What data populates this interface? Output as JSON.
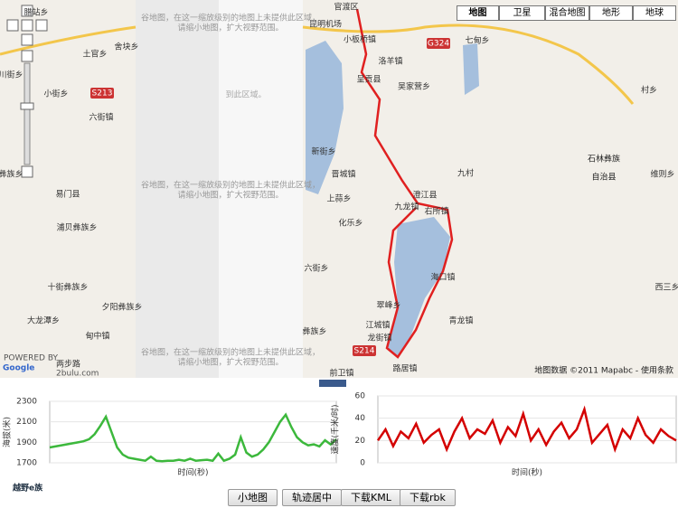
{
  "map": {
    "type_buttons": [
      "地图",
      "卫星",
      "混合地图",
      "地形",
      "地球"
    ],
    "labels": [
      "腊站乡",
      "土官乡",
      "舍块乡",
      "小街乡",
      "六街镇",
      "易门县",
      "浦贝彝族乡",
      "十街彝族乡",
      "大龙潭乡",
      "夕阳彝族乡",
      "甸中镇",
      "川街乡",
      "彝族乡",
      "官渡区",
      "昆明机场",
      "小板桥镇",
      "呈贡县",
      "洛羊镇",
      "吴家营乡",
      "七甸乡",
      "新街乡",
      "晋城镇",
      "上蒜乡",
      "化乐乡",
      "澄江县",
      "九龙镇",
      "右所镇",
      "九村",
      "海口镇",
      "六街乡",
      "翠峰乡",
      "江城镇",
      "龙街镇",
      "青龙镇",
      "彝族乡",
      "前卫镇",
      "路居镇",
      "村乡",
      "维则乡",
      "西三乡"
    ],
    "big_label": [
      "石林彝族",
      "自治县"
    ],
    "grey_label": "到此区域。",
    "roads": [
      "S213",
      "G324",
      "S214"
    ],
    "notice": [
      "谷地图，在这一缩放级别的地图上未提供此区域，",
      "请缩小地图，扩大视野范围。"
    ],
    "attribution": "地图数据 ©2011 Mapabc - 使用条款",
    "powered": "POWERED BY",
    "google": "Google",
    "brand": "两步路",
    "brand_url": "2bulu.com"
  },
  "chart_data": [
    {
      "type": "line",
      "y_label": "海拔(米)",
      "x_label": "时间(秒)",
      "ylim": [
        1700,
        2300
      ],
      "yticks": [
        1700,
        1900,
        2100,
        2300
      ],
      "color": "#3cb83c",
      "values": [
        1850,
        1860,
        1870,
        1880,
        1890,
        1900,
        1910,
        1930,
        1980,
        2060,
        2150,
        2000,
        1850,
        1780,
        1750,
        1740,
        1730,
        1720,
        1760,
        1720,
        1715,
        1720,
        1720,
        1730,
        1720,
        1740,
        1720,
        1725,
        1730,
        1720,
        1790,
        1720,
        1740,
        1780,
        1950,
        1800,
        1760,
        1780,
        1830,
        1900,
        2000,
        2100,
        2170,
        2050,
        1950,
        1900,
        1870,
        1880,
        1860,
        1920,
        1880,
        1930
      ]
    },
    {
      "type": "line",
      "y_label": "速度(千米/时)",
      "x_label": "时间(秒)",
      "ylim": [
        0,
        60
      ],
      "yticks": [
        0,
        20,
        40,
        60
      ],
      "color": "#d40000",
      "values": [
        20,
        30,
        15,
        28,
        22,
        35,
        18,
        25,
        30,
        12,
        28,
        40,
        22,
        30,
        26,
        38,
        18,
        32,
        24,
        44,
        20,
        30,
        16,
        28,
        36,
        22,
        30,
        48,
        18,
        26,
        34,
        12,
        30,
        22,
        40,
        25,
        18,
        30,
        24,
        20
      ]
    }
  ],
  "footer": {
    "logo": "越野e族",
    "buttons": [
      "小地图",
      "轨迹居中",
      "下载KML",
      "下载rbk"
    ]
  }
}
